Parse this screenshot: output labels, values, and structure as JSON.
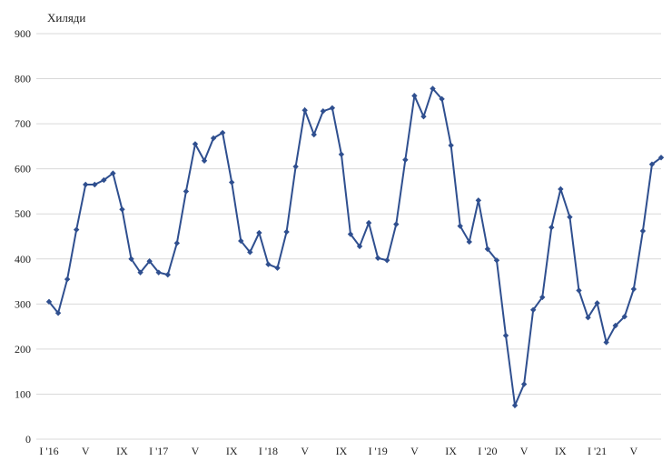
{
  "chart_data": {
    "type": "line",
    "title": "",
    "ylabel": "Хиляди",
    "xlabel": "",
    "ylim": [
      0,
      900
    ],
    "yticks": [
      0,
      100,
      200,
      300,
      400,
      500,
      600,
      700,
      800,
      900
    ],
    "grid": true,
    "x_tick_labels": [
      {
        "index": 0,
        "label": "I '16"
      },
      {
        "index": 4,
        "label": "V"
      },
      {
        "index": 8,
        "label": "IX"
      },
      {
        "index": 12,
        "label": "I '17"
      },
      {
        "index": 16,
        "label": "V"
      },
      {
        "index": 20,
        "label": "IX"
      },
      {
        "index": 24,
        "label": "I '18"
      },
      {
        "index": 28,
        "label": "V"
      },
      {
        "index": 32,
        "label": "IX"
      },
      {
        "index": 36,
        "label": "I '19"
      },
      {
        "index": 40,
        "label": "V"
      },
      {
        "index": 44,
        "label": "IX"
      },
      {
        "index": 48,
        "label": "I '20"
      },
      {
        "index": 52,
        "label": "V"
      },
      {
        "index": 56,
        "label": "IX"
      },
      {
        "index": 60,
        "label": "I '21"
      },
      {
        "index": 64,
        "label": "V"
      }
    ],
    "series": [
      {
        "color": "#2f4f8f",
        "values": [
          305,
          280,
          355,
          465,
          565,
          565,
          575,
          590,
          510,
          400,
          370,
          395,
          370,
          365,
          435,
          550,
          655,
          618,
          668,
          680,
          570,
          440,
          415,
          458,
          388,
          380,
          460,
          605,
          730,
          676,
          728,
          735,
          632,
          455,
          428,
          480,
          402,
          397,
          477,
          620,
          762,
          716,
          778,
          755,
          652,
          473,
          438,
          530,
          422,
          397,
          230,
          75,
          122,
          287,
          315,
          470,
          555,
          493,
          330,
          270,
          302,
          215,
          252,
          272,
          333,
          462,
          610,
          625
        ]
      }
    ]
  }
}
